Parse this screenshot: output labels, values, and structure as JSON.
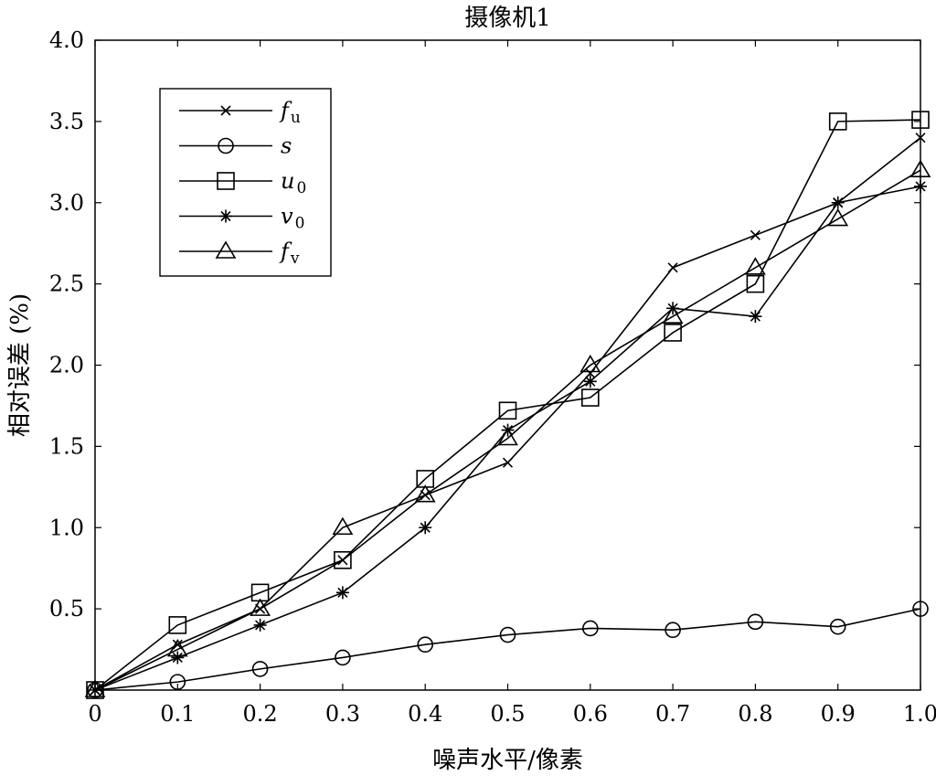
{
  "chart_data": {
    "type": "line",
    "title": "摄像机1",
    "xlabel": "噪声水平/像素",
    "ylabel": "相对误差 (%)",
    "xlim": [
      0,
      1.0
    ],
    "ylim": [
      0,
      4.0
    ],
    "x": [
      0,
      0.1,
      0.2,
      0.3,
      0.4,
      0.5,
      0.6,
      0.7,
      0.8,
      0.9,
      1.0
    ],
    "x_tick_labels": [
      "0",
      "0.1",
      "0.2",
      "0.3",
      "0.4",
      "0.5",
      "0.6",
      "0.7",
      "0.8",
      "0.9",
      "1.0"
    ],
    "y_ticks": [
      0.5,
      1.0,
      1.5,
      2.0,
      2.5,
      3.0,
      3.5,
      4.0
    ],
    "y_tick_labels": [
      "0.5",
      "1.0",
      "1.5",
      "2.0",
      "2.5",
      "3.0",
      "3.5",
      "4.0"
    ],
    "grid": false,
    "legend_position": "top-left",
    "series": [
      {
        "name": "fu",
        "label_main": "f",
        "label_sub": "u",
        "marker": "x",
        "values": [
          0,
          0.28,
          0.5,
          0.8,
          1.2,
          1.4,
          1.95,
          2.6,
          2.8,
          3.0,
          3.4
        ]
      },
      {
        "name": "s",
        "label_main": "s",
        "label_sub": "",
        "marker": "circle",
        "values": [
          0,
          0.05,
          0.13,
          0.2,
          0.28,
          0.34,
          0.38,
          0.37,
          0.42,
          0.39,
          0.5
        ]
      },
      {
        "name": "u0",
        "label_main": "u",
        "label_sub": "0",
        "marker": "square",
        "values": [
          0,
          0.4,
          0.6,
          0.8,
          1.3,
          1.72,
          1.8,
          2.2,
          2.5,
          3.5,
          3.51
        ]
      },
      {
        "name": "v0",
        "label_main": "v",
        "label_sub": "0",
        "marker": "star",
        "values": [
          0,
          0.2,
          0.4,
          0.6,
          1.0,
          1.6,
          1.9,
          2.35,
          2.3,
          3.0,
          3.1
        ]
      },
      {
        "name": "fv",
        "label_main": "f",
        "label_sub": "v",
        "marker": "triangle",
        "values": [
          0,
          0.25,
          0.5,
          1.0,
          1.2,
          1.55,
          2.0,
          2.3,
          2.6,
          2.9,
          3.2
        ]
      }
    ]
  }
}
